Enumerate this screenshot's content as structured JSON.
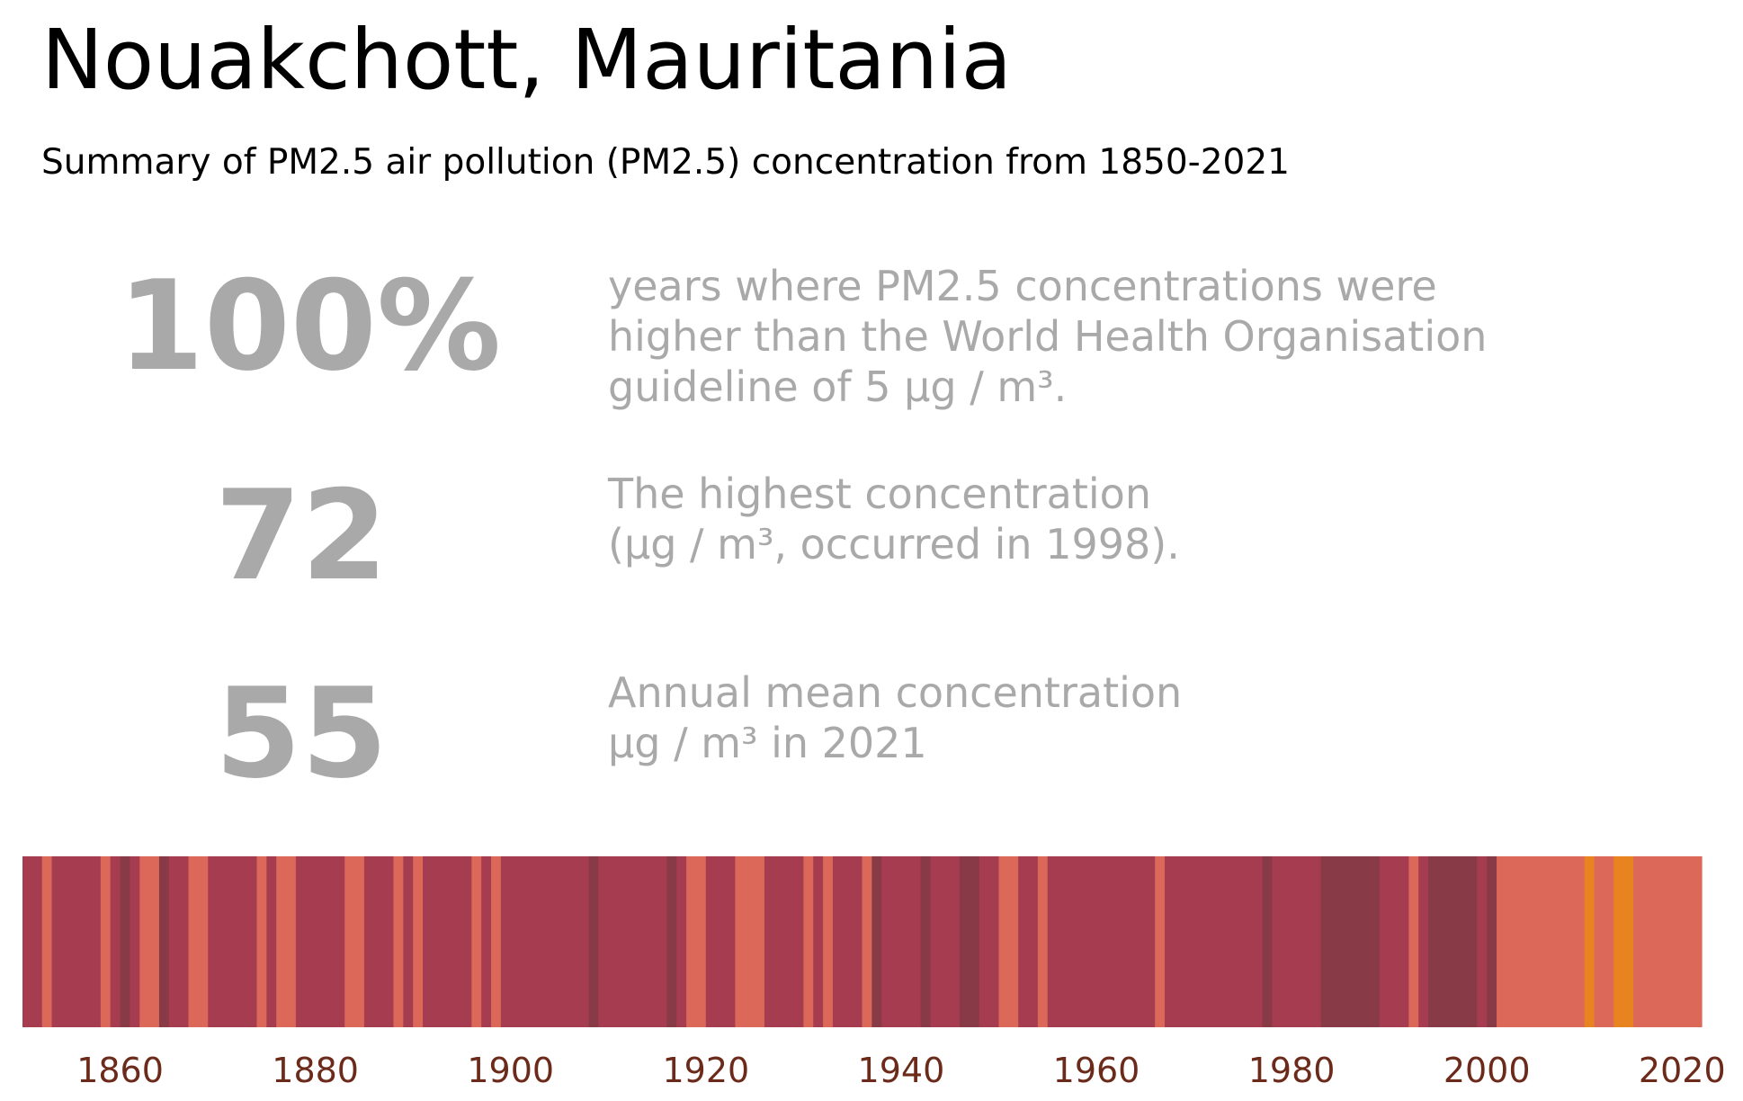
{
  "title": "Nouakchott, Mauritania",
  "subtitle": "Summary of PM2.5 air pollution (PM2.5) concentration from 1850-2021",
  "stats": [
    {
      "value": "100%",
      "lines": [
        "years where PM2.5 concentrations were",
        "higher than the World Health Organisation",
        "guideline of 5 µg / m³."
      ]
    },
    {
      "value": "72",
      "lines": [
        "The highest concentration",
        "(µg / m³, occurred in 1998)."
      ]
    },
    {
      "value": "55",
      "lines": [
        "Annual mean concentration",
        "µg / m³ in 2021"
      ]
    }
  ],
  "colors": {
    "text_grey": "#a9a9a9",
    "tick_label": "#6b2a1a",
    "level_colors": {
      "low": "#e8841f",
      "mid": "#db6858",
      "high": "#a63c50",
      "very_high": "#883a46"
    }
  },
  "chart_data": {
    "type": "heatmap",
    "x_start_year": 1850,
    "x_end_year": 2021,
    "xlim": [
      1850,
      2022
    ],
    "xticks": [
      1860,
      1880,
      1900,
      1920,
      1940,
      1960,
      1980,
      2000,
      2020
    ],
    "tick_labels": [
      "1860",
      "1880",
      "1900",
      "1920",
      "1940",
      "1960",
      "1980",
      "2000",
      "2020"
    ],
    "level_order": [
      "low",
      "mid",
      "high",
      "very_high"
    ],
    "segments": [
      {
        "from": 1850,
        "to": 1852,
        "level": "high"
      },
      {
        "from": 1852,
        "to": 1853,
        "level": "mid"
      },
      {
        "from": 1853,
        "to": 1858,
        "level": "high"
      },
      {
        "from": 1858,
        "to": 1859,
        "level": "mid"
      },
      {
        "from": 1859,
        "to": 1860,
        "level": "high"
      },
      {
        "from": 1860,
        "to": 1861,
        "level": "very_high"
      },
      {
        "from": 1861,
        "to": 1862,
        "level": "high"
      },
      {
        "from": 1862,
        "to": 1864,
        "level": "mid"
      },
      {
        "from": 1864,
        "to": 1865,
        "level": "very_high"
      },
      {
        "from": 1865,
        "to": 1867,
        "level": "high"
      },
      {
        "from": 1867,
        "to": 1869,
        "level": "mid"
      },
      {
        "from": 1869,
        "to": 1874,
        "level": "high"
      },
      {
        "from": 1874,
        "to": 1875,
        "level": "mid"
      },
      {
        "from": 1875,
        "to": 1876,
        "level": "high"
      },
      {
        "from": 1876,
        "to": 1878,
        "level": "mid"
      },
      {
        "from": 1878,
        "to": 1883,
        "level": "high"
      },
      {
        "from": 1883,
        "to": 1885,
        "level": "mid"
      },
      {
        "from": 1885,
        "to": 1888,
        "level": "high"
      },
      {
        "from": 1888,
        "to": 1889,
        "level": "mid"
      },
      {
        "from": 1889,
        "to": 1890,
        "level": "high"
      },
      {
        "from": 1890,
        "to": 1891,
        "level": "mid"
      },
      {
        "from": 1891,
        "to": 1896,
        "level": "high"
      },
      {
        "from": 1896,
        "to": 1897,
        "level": "mid"
      },
      {
        "from": 1897,
        "to": 1898,
        "level": "high"
      },
      {
        "from": 1898,
        "to": 1899,
        "level": "mid"
      },
      {
        "from": 1899,
        "to": 1908,
        "level": "high"
      },
      {
        "from": 1908,
        "to": 1909,
        "level": "very_high"
      },
      {
        "from": 1909,
        "to": 1916,
        "level": "high"
      },
      {
        "from": 1916,
        "to": 1917,
        "level": "very_high"
      },
      {
        "from": 1917,
        "to": 1918,
        "level": "high"
      },
      {
        "from": 1918,
        "to": 1920,
        "level": "mid"
      },
      {
        "from": 1920,
        "to": 1923,
        "level": "high"
      },
      {
        "from": 1923,
        "to": 1926,
        "level": "mid"
      },
      {
        "from": 1926,
        "to": 1930,
        "level": "high"
      },
      {
        "from": 1930,
        "to": 1931,
        "level": "mid"
      },
      {
        "from": 1931,
        "to": 1932,
        "level": "high"
      },
      {
        "from": 1932,
        "to": 1933,
        "level": "mid"
      },
      {
        "from": 1933,
        "to": 1936,
        "level": "high"
      },
      {
        "from": 1936,
        "to": 1937,
        "level": "mid"
      },
      {
        "from": 1937,
        "to": 1938,
        "level": "very_high"
      },
      {
        "from": 1938,
        "to": 1942,
        "level": "high"
      },
      {
        "from": 1942,
        "to": 1943,
        "level": "very_high"
      },
      {
        "from": 1943,
        "to": 1946,
        "level": "high"
      },
      {
        "from": 1946,
        "to": 1948,
        "level": "very_high"
      },
      {
        "from": 1948,
        "to": 1950,
        "level": "high"
      },
      {
        "from": 1950,
        "to": 1952,
        "level": "mid"
      },
      {
        "from": 1952,
        "to": 1954,
        "level": "high"
      },
      {
        "from": 1954,
        "to": 1955,
        "level": "mid"
      },
      {
        "from": 1955,
        "to": 1966,
        "level": "high"
      },
      {
        "from": 1966,
        "to": 1967,
        "level": "mid"
      },
      {
        "from": 1967,
        "to": 1977,
        "level": "high"
      },
      {
        "from": 1977,
        "to": 1978,
        "level": "very_high"
      },
      {
        "from": 1978,
        "to": 1983,
        "level": "high"
      },
      {
        "from": 1983,
        "to": 1989,
        "level": "very_high"
      },
      {
        "from": 1989,
        "to": 1992,
        "level": "high"
      },
      {
        "from": 1992,
        "to": 1993,
        "level": "mid"
      },
      {
        "from": 1993,
        "to": 1994,
        "level": "high"
      },
      {
        "from": 1994,
        "to": 1999,
        "level": "very_high"
      },
      {
        "from": 1999,
        "to": 2000,
        "level": "high"
      },
      {
        "from": 2000,
        "to": 2001,
        "level": "very_high"
      },
      {
        "from": 2001,
        "to": 2010,
        "level": "mid"
      },
      {
        "from": 2010,
        "to": 2011,
        "level": "low"
      },
      {
        "from": 2011,
        "to": 2013,
        "level": "mid"
      },
      {
        "from": 2013,
        "to": 2015,
        "level": "low"
      },
      {
        "from": 2015,
        "to": 2022,
        "level": "mid"
      }
    ]
  }
}
